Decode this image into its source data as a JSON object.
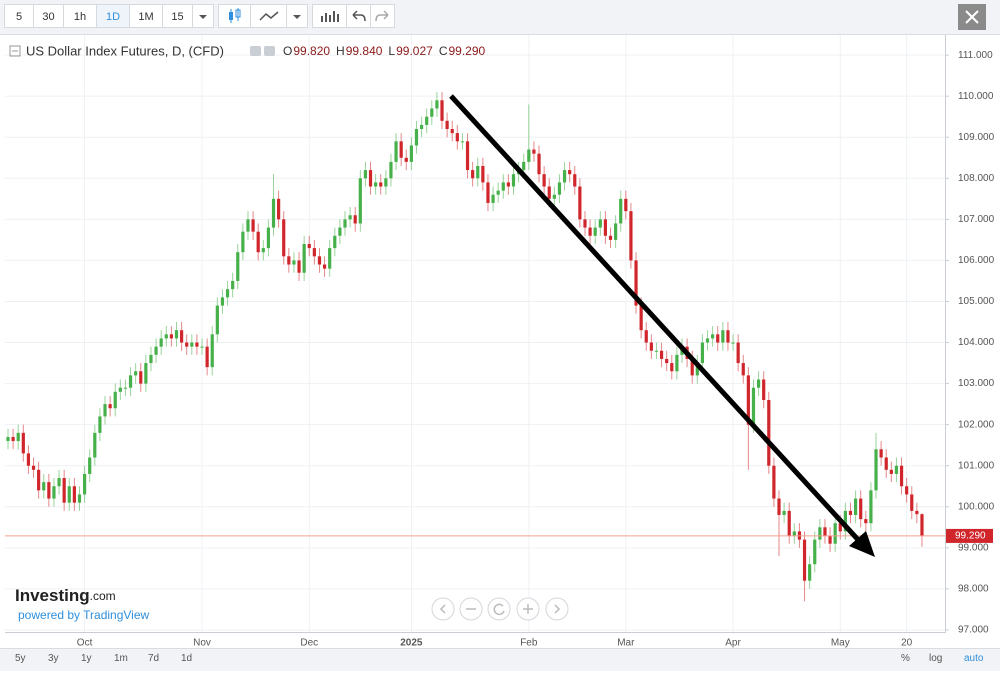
{
  "toolbar": {
    "intervals": [
      "5",
      "30",
      "1h",
      "1D",
      "1M",
      "15"
    ]
  },
  "footer": {
    "ranges": [
      "5y",
      "3y",
      "1y",
      "1m",
      "7d",
      "1d"
    ],
    "options": [
      "%",
      "log",
      "auto"
    ]
  },
  "watermark": {
    "brand": "Investing",
    "domain": ".com",
    "powered": "powered by TradingView"
  },
  "chart_data": {
    "type": "candlestick",
    "title": "US Dollar Index Futures, D, (CFD)",
    "ohlc_labels": [
      {
        "key": "O",
        "value": "99.820"
      },
      {
        "key": "H",
        "value": "99.840"
      },
      {
        "key": "L",
        "value": "99.027"
      },
      {
        "key": "C",
        "value": "99.290"
      }
    ],
    "last_value_label": "99.290",
    "up_color": "#46b04a",
    "down_color": "#d0262b",
    "last_line_color": "#f2a08c",
    "grid": true,
    "ylim": [
      96.95,
      111.49
    ],
    "yticks": [
      {
        "value": 97,
        "label": "97.000"
      },
      {
        "value": 98,
        "label": "98.000"
      },
      {
        "value": 99,
        "label": "99.000"
      },
      {
        "value": 100,
        "label": "100.000"
      },
      {
        "value": 101,
        "label": "101.000"
      },
      {
        "value": 102,
        "label": "102.000"
      },
      {
        "value": 103,
        "label": "103.000"
      },
      {
        "value": 104,
        "label": "104.000"
      },
      {
        "value": 105,
        "label": "105.000"
      },
      {
        "value": 106,
        "label": "106.000"
      },
      {
        "value": 107,
        "label": "107.000"
      },
      {
        "value": 108,
        "label": "108.000"
      },
      {
        "value": 109,
        "label": "109.000"
      },
      {
        "value": 110,
        "label": "110.000"
      },
      {
        "value": 111,
        "label": "111.000"
      }
    ],
    "categories": [
      null,
      null,
      null,
      null,
      null,
      null,
      null,
      null,
      null,
      null,
      null,
      null,
      null,
      null,
      null,
      "Oct",
      null,
      null,
      null,
      null,
      null,
      null,
      null,
      null,
      null,
      null,
      null,
      null,
      null,
      null,
      null,
      null,
      null,
      null,
      null,
      null,
      null,
      null,
      "Nov",
      null,
      null,
      null,
      null,
      null,
      null,
      null,
      null,
      null,
      null,
      null,
      null,
      null,
      null,
      null,
      null,
      null,
      null,
      null,
      null,
      "Dec",
      null,
      null,
      null,
      null,
      null,
      null,
      null,
      null,
      null,
      null,
      null,
      null,
      null,
      null,
      null,
      null,
      null,
      null,
      null,
      "2025",
      null,
      null,
      null,
      null,
      null,
      null,
      null,
      null,
      null,
      null,
      null,
      null,
      null,
      null,
      null,
      null,
      null,
      null,
      null,
      null,
      null,
      null,
      "Feb",
      null,
      null,
      null,
      null,
      null,
      null,
      null,
      null,
      null,
      null,
      null,
      null,
      null,
      null,
      null,
      null,
      null,
      null,
      "Mar",
      null,
      null,
      null,
      null,
      null,
      null,
      null,
      null,
      null,
      null,
      null,
      null,
      null,
      null,
      null,
      null,
      null,
      null,
      null,
      null,
      "Apr",
      null,
      null,
      null,
      null,
      null,
      null,
      null,
      null,
      null,
      null,
      null,
      null,
      null,
      null,
      null,
      null,
      null,
      null,
      null,
      null,
      "May",
      null,
      null,
      null,
      null,
      null,
      null,
      null,
      null,
      null,
      null,
      null,
      null,
      "20",
      null,
      null,
      null
    ],
    "open": [
      101.6,
      101.7,
      101.6,
      101.8,
      101.3,
      101.0,
      100.9,
      100.4,
      100.6,
      100.2,
      100.5,
      100.7,
      100.1,
      100.5,
      100.1,
      100.3,
      100.8,
      101.2,
      101.8,
      102.2,
      102.5,
      102.4,
      102.8,
      102.9,
      102.9,
      103.2,
      103.3,
      103.0,
      103.5,
      103.7,
      103.9,
      104.1,
      104.2,
      104.1,
      104.3,
      104.0,
      103.9,
      104.0,
      103.9,
      103.9,
      103.4,
      104.2,
      104.9,
      105.1,
      105.3,
      105.5,
      106.2,
      106.7,
      107.0,
      106.7,
      106.2,
      106.3,
      106.8,
      107.5,
      107.0,
      106.1,
      105.9,
      106.0,
      105.7,
      106.4,
      106.3,
      106.1,
      105.9,
      105.8,
      106.3,
      106.6,
      106.8,
      107.0,
      107.1,
      106.9,
      108.0,
      108.2,
      107.8,
      107.9,
      107.8,
      108.0,
      108.4,
      108.9,
      108.5,
      108.4,
      108.8,
      109.2,
      109.3,
      109.5,
      109.7,
      109.9,
      109.4,
      109.2,
      109.1,
      108.9,
      108.9,
      108.2,
      108.0,
      108.3,
      107.9,
      107.4,
      107.6,
      107.7,
      107.9,
      107.8,
      108.1,
      108.2,
      108.4,
      108.7,
      108.6,
      108.1,
      107.8,
      107.5,
      107.6,
      107.9,
      108.2,
      108.1,
      107.8,
      107.0,
      106.8,
      106.6,
      106.8,
      107.0,
      106.6,
      106.5,
      106.9,
      107.5,
      107.2,
      106.0,
      104.9,
      104.3,
      104.0,
      103.8,
      103.8,
      103.6,
      103.5,
      103.3,
      103.7,
      103.9,
      103.6,
      103.2,
      103.5,
      104.0,
      104.1,
      104.2,
      104.0,
      104.3,
      104.0,
      104.0,
      103.5,
      103.2,
      102.0,
      102.9,
      103.1,
      102.6,
      101.0,
      100.2,
      99.8,
      99.9,
      99.3,
      99.4,
      99.2,
      98.2,
      98.6,
      99.2,
      99.5,
      99.3,
      99.1,
      99.6,
      99.4,
      99.9,
      99.8,
      100.2,
      99.7,
      99.6,
      100.4,
      101.4,
      101.2,
      100.9,
      100.8,
      101.0,
      100.5,
      100.3,
      99.9,
      99.82
    ],
    "high": [
      101.9,
      101.9,
      102.0,
      102.0,
      101.5,
      101.2,
      101.1,
      100.8,
      100.8,
      100.7,
      100.9,
      100.9,
      100.7,
      100.7,
      100.5,
      101.0,
      101.4,
      102.0,
      102.4,
      102.7,
      102.7,
      103.0,
      103.1,
      103.1,
      103.4,
      103.5,
      103.5,
      103.7,
      103.9,
      104.1,
      104.3,
      104.4,
      104.4,
      104.5,
      104.5,
      104.2,
      104.2,
      104.2,
      104.1,
      104.1,
      104.4,
      105.1,
      105.3,
      105.5,
      105.7,
      106.4,
      106.9,
      107.2,
      107.2,
      106.9,
      106.5,
      107.0,
      108.1,
      107.7,
      107.2,
      106.3,
      106.2,
      106.2,
      106.6,
      106.6,
      106.5,
      106.3,
      106.1,
      106.5,
      106.8,
      107.0,
      107.2,
      107.3,
      107.3,
      108.2,
      108.4,
      108.4,
      108.1,
      108.1,
      108.2,
      108.6,
      109.1,
      109.1,
      108.7,
      109.0,
      109.4,
      109.5,
      109.7,
      109.9,
      110.1,
      110.1,
      109.6,
      109.4,
      109.3,
      109.1,
      109.1,
      108.4,
      108.5,
      108.5,
      108.1,
      107.8,
      107.9,
      108.1,
      108.1,
      108.3,
      108.4,
      108.6,
      109.8,
      108.9,
      108.8,
      108.3,
      108.0,
      107.8,
      108.1,
      108.4,
      108.4,
      108.3,
      108.0,
      107.2,
      107.0,
      107.0,
      107.2,
      107.2,
      106.8,
      107.1,
      107.7,
      107.7,
      107.4,
      106.2,
      105.1,
      104.5,
      104.2,
      104.0,
      104.0,
      103.8,
      103.7,
      103.9,
      104.1,
      104.1,
      103.8,
      103.7,
      104.2,
      104.3,
      104.4,
      104.4,
      104.5,
      104.5,
      104.2,
      104.2,
      103.7,
      103.4,
      103.1,
      103.3,
      103.3,
      102.8,
      101.2,
      100.4,
      100.1,
      100.1,
      99.6,
      99.6,
      99.4,
      98.8,
      99.4,
      99.7,
      99.7,
      99.5,
      99.8,
      99.8,
      100.1,
      100.1,
      100.4,
      100.4,
      99.9,
      100.6,
      101.8,
      101.6,
      101.4,
      101.1,
      101.2,
      101.2,
      100.7,
      100.5,
      100.1,
      99.84
    ],
    "low": [
      101.4,
      101.4,
      101.4,
      101.1,
      100.8,
      100.7,
      100.2,
      100.2,
      100.0,
      100.0,
      100.3,
      99.9,
      99.9,
      99.9,
      99.9,
      100.1,
      100.6,
      101.0,
      101.6,
      102.0,
      102.2,
      102.2,
      102.6,
      102.7,
      102.7,
      103.0,
      102.8,
      102.8,
      103.3,
      103.5,
      103.7,
      103.9,
      103.9,
      103.9,
      103.8,
      103.7,
      103.7,
      103.7,
      103.7,
      103.2,
      103.2,
      104.0,
      104.7,
      104.9,
      105.1,
      105.3,
      106.0,
      106.5,
      106.5,
      106.0,
      106.0,
      106.1,
      106.6,
      106.8,
      105.9,
      105.7,
      105.7,
      105.5,
      105.5,
      106.1,
      105.9,
      105.7,
      105.6,
      105.6,
      106.1,
      106.4,
      106.6,
      106.8,
      106.7,
      106.7,
      107.8,
      107.6,
      107.6,
      107.6,
      107.6,
      107.8,
      108.2,
      108.3,
      108.2,
      108.2,
      108.6,
      109.0,
      109.1,
      109.3,
      109.5,
      109.2,
      109.0,
      108.9,
      108.7,
      108.7,
      108.0,
      107.8,
      107.8,
      107.7,
      107.2,
      107.2,
      107.4,
      107.5,
      107.6,
      107.6,
      107.9,
      108.0,
      108.2,
      108.4,
      107.9,
      107.6,
      107.3,
      107.3,
      107.4,
      107.7,
      107.9,
      107.6,
      106.8,
      106.6,
      106.4,
      106.4,
      106.6,
      106.4,
      106.3,
      106.3,
      106.7,
      107.0,
      105.8,
      104.7,
      104.1,
      103.8,
      103.6,
      103.6,
      103.4,
      103.3,
      103.1,
      103.1,
      103.5,
      103.4,
      103.0,
      103.0,
      103.3,
      103.8,
      103.9,
      103.8,
      103.8,
      103.8,
      103.8,
      103.3,
      103.0,
      100.9,
      101.8,
      102.7,
      102.4,
      100.8,
      100.0,
      98.8,
      99.6,
      99.1,
      99.1,
      99.0,
      97.7,
      98.0,
      98.4,
      99.0,
      99.1,
      98.9,
      98.9,
      99.2,
      99.2,
      99.6,
      99.6,
      99.5,
      99.4,
      99.4,
      100.2,
      101.0,
      100.7,
      100.6,
      100.6,
      100.3,
      100.1,
      99.7,
      99.6,
      99.027
    ],
    "close": [
      101.7,
      101.6,
      101.8,
      101.3,
      101.0,
      100.9,
      100.4,
      100.6,
      100.2,
      100.5,
      100.7,
      100.1,
      100.5,
      100.1,
      100.3,
      100.8,
      101.2,
      101.8,
      102.2,
      102.5,
      102.4,
      102.8,
      102.9,
      102.9,
      103.2,
      103.3,
      103.0,
      103.5,
      103.7,
      103.9,
      104.1,
      104.2,
      104.1,
      104.3,
      104.0,
      103.9,
      104.0,
      103.9,
      103.9,
      103.4,
      104.2,
      104.9,
      105.1,
      105.3,
      105.5,
      106.2,
      106.7,
      107.0,
      106.7,
      106.2,
      106.3,
      106.8,
      107.5,
      107.0,
      106.1,
      105.9,
      106.0,
      105.7,
      106.4,
      106.3,
      106.1,
      105.9,
      105.8,
      106.3,
      106.6,
      106.8,
      107.0,
      107.1,
      106.9,
      108.0,
      108.2,
      107.8,
      107.9,
      107.8,
      108.0,
      108.4,
      108.9,
      108.5,
      108.4,
      108.8,
      109.2,
      109.3,
      109.5,
      109.7,
      109.9,
      109.4,
      109.2,
      109.1,
      108.9,
      108.9,
      108.2,
      108.0,
      108.3,
      107.9,
      107.4,
      107.6,
      107.7,
      107.9,
      107.8,
      108.1,
      108.2,
      108.4,
      108.7,
      108.6,
      108.1,
      107.8,
      107.5,
      107.6,
      107.9,
      108.2,
      108.1,
      107.8,
      107.0,
      106.8,
      106.6,
      106.8,
      107.0,
      106.6,
      106.5,
      106.9,
      107.5,
      107.2,
      106.0,
      104.9,
      104.3,
      104.0,
      103.8,
      103.8,
      103.6,
      103.5,
      103.3,
      103.7,
      103.9,
      103.6,
      103.2,
      103.5,
      104.0,
      104.1,
      104.2,
      104.0,
      104.3,
      104.0,
      104.0,
      103.5,
      103.2,
      102.0,
      102.9,
      103.1,
      102.6,
      101.0,
      100.2,
      99.8,
      99.9,
      99.3,
      99.4,
      99.2,
      98.2,
      98.6,
      99.2,
      99.5,
      99.3,
      99.1,
      99.6,
      99.4,
      99.9,
      99.8,
      100.2,
      99.7,
      99.6,
      100.4,
      101.4,
      101.2,
      100.9,
      100.8,
      101.0,
      100.5,
      100.3,
      99.9,
      99.82,
      99.29
    ]
  }
}
